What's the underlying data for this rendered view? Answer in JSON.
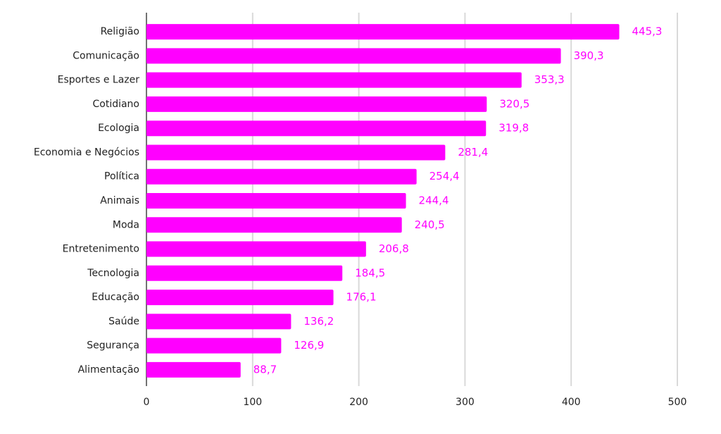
{
  "chart_data": {
    "type": "bar",
    "orientation": "horizontal",
    "categories": [
      "Religião",
      "Comunicação",
      "Esportes e Lazer",
      "Cotidiano",
      "Ecologia",
      "Economia e Negócios",
      "Política",
      "Animais",
      "Moda",
      "Entretenimento",
      "Tecnologia",
      "Educação",
      "Saúde",
      "Segurança",
      "Alimentação"
    ],
    "values": [
      445.3,
      390.3,
      353.3,
      320.5,
      319.8,
      281.4,
      254.4,
      244.4,
      240.5,
      206.8,
      184.5,
      176.1,
      136.2,
      126.9,
      88.7
    ],
    "value_labels": [
      "445,3",
      "390,3",
      "353,3",
      "320,5",
      "319,8",
      "281,4",
      "254,4",
      "244,4",
      "240,5",
      "206,8",
      "184,5",
      "176,1",
      "136,2",
      "126,9",
      "88,7"
    ],
    "color": "#ff00ff",
    "xlim": [
      0,
      500
    ],
    "xticks": [
      0,
      100,
      200,
      300,
      400,
      500
    ],
    "grid": true
  }
}
